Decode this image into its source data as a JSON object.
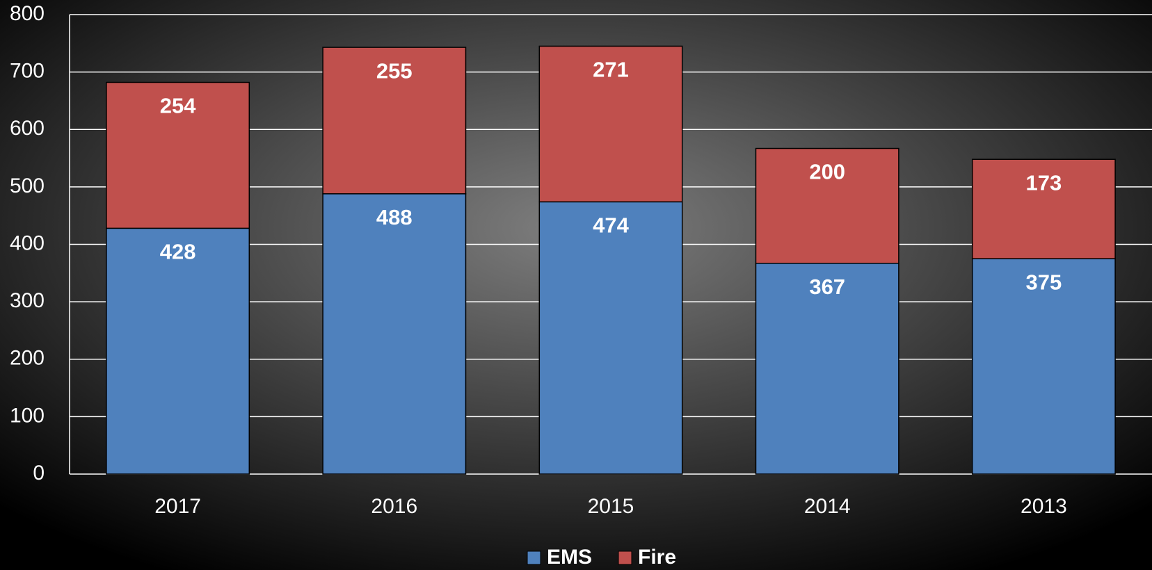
{
  "chart_data": {
    "type": "stacked_bar",
    "categories": [
      "2017",
      "2016",
      "2015",
      "2014",
      "2013"
    ],
    "series": [
      {
        "name": "EMS",
        "color": "#4f81bd",
        "values": [
          428,
          488,
          474,
          367,
          375
        ]
      },
      {
        "name": "Fire",
        "color": "#c0504d",
        "values": [
          254,
          255,
          271,
          200,
          173
        ]
      }
    ],
    "ylim": [
      0,
      800
    ],
    "yticks": [
      0,
      100,
      200,
      300,
      400,
      500,
      600,
      700,
      800
    ],
    "grid": true,
    "legend": "bottom"
  }
}
